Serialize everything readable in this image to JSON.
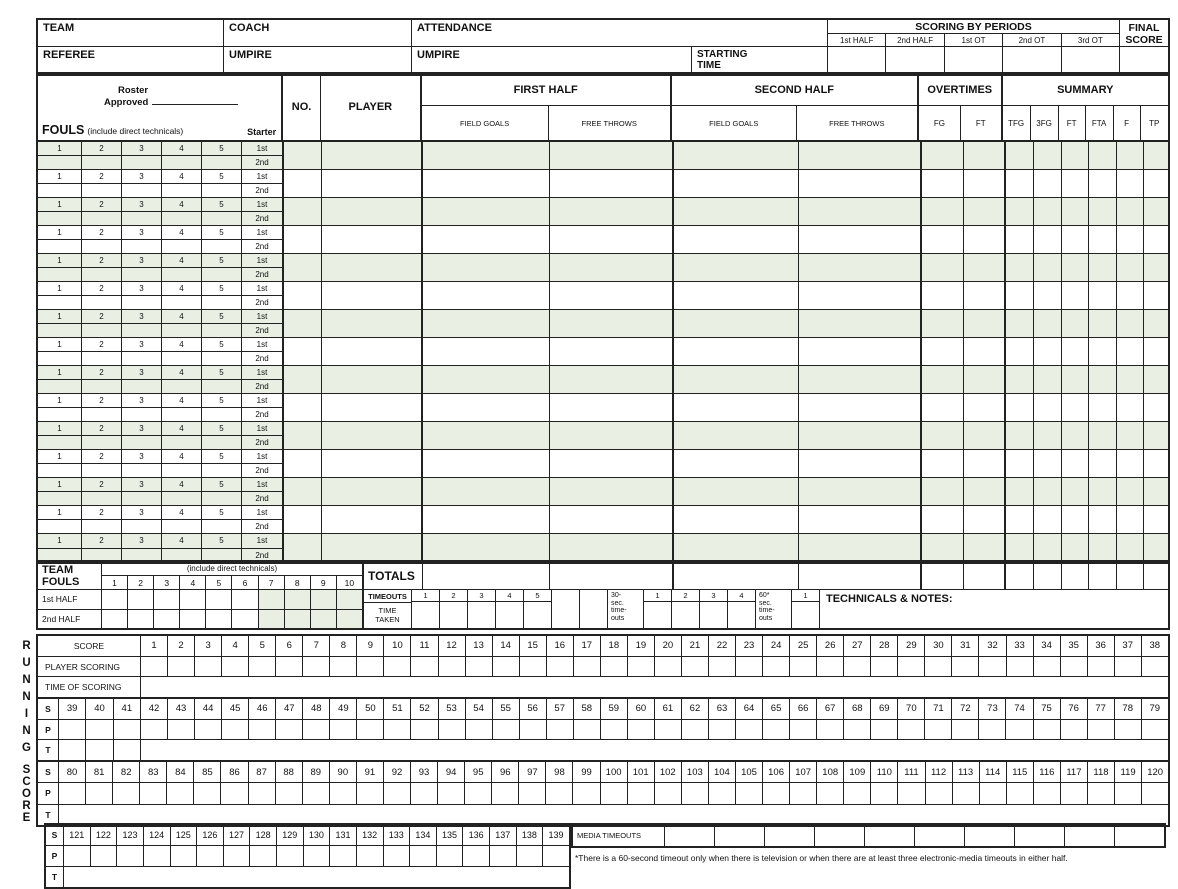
{
  "colors": {
    "green": "#e9efe3",
    "border": "#222222"
  },
  "top": {
    "team": "TEAM",
    "coach": "COACH",
    "attendance": "ATTENDANCE",
    "referee": "REFEREE",
    "umpire1": "UMPIRE",
    "umpire2": "UMPIRE",
    "starting_time": "STARTING\nTIME",
    "scoring_title": "SCORING BY PERIODS",
    "periods": [
      "1st HALF",
      "2nd HALF",
      "1st OT",
      "2nd OT",
      "3rd OT"
    ],
    "final_score": "FINAL\nSCORE"
  },
  "roster": {
    "roster_line": "Roster",
    "approved_line": "Approved",
    "fouls": "FOULS",
    "fouls_note": "(include direct technicals)",
    "starter": "Starter",
    "no": "NO.",
    "player": "PLAYER",
    "first_half": "FIRST HALF",
    "second_half": "SECOND HALF",
    "overtimes": "OVERTIMES",
    "summary": "SUMMARY",
    "field_goals": "FIELD GOALS",
    "free_throws": "FREE THROWS",
    "ot_cols": [
      "FG",
      "FT"
    ],
    "summary_cols": [
      "TFG",
      "3FG",
      "FT",
      "FTA",
      "F",
      "TP"
    ],
    "foul_numbers": [
      "1",
      "2",
      "3",
      "4",
      "5"
    ],
    "half_tags": [
      "1st",
      "2nd"
    ],
    "player_row_count": 15
  },
  "team_fouls": {
    "label": "TEAM\nFOULS",
    "note": "(include direct technicals)",
    "numbers": [
      "1",
      "2",
      "3",
      "4",
      "5",
      "6",
      "7",
      "8",
      "9",
      "10"
    ],
    "row_labels": [
      "1st HALF",
      "2nd HALF"
    ],
    "green_from_column": 7
  },
  "totals_label": "TOTALS",
  "timeouts": {
    "label": "TIMEOUTS",
    "time_taken": "TIME\nTAKEN",
    "regular_numbers": [
      "1",
      "2",
      "3",
      "4",
      "5"
    ],
    "spare_cells": 2,
    "thirty_label": [
      "30-",
      "sec.",
      "time-",
      "outs"
    ],
    "thirty_numbers": [
      "1",
      "2",
      "3",
      "4"
    ],
    "sixty_label": [
      "60*",
      "sec.",
      "time-",
      "outs"
    ],
    "sixty_numbers": [
      "1"
    ]
  },
  "technicals_label": "TECHNICALS & NOTES:",
  "running_score": {
    "vertical_word_1": "RUNNING",
    "vertical_word_2": "SCORE",
    "score_label": "SCORE",
    "player_scoring_label": "PLAYER SCORING",
    "time_of_scoring_label": "TIME OF SCORING",
    "spt": [
      "S",
      "P",
      "T"
    ],
    "bands": [
      {
        "start": 1,
        "end": 38
      },
      {
        "start": 39,
        "end": 79
      },
      {
        "start": 80,
        "end": 120
      },
      {
        "start": 121,
        "end": 139
      }
    ],
    "media_timeouts_label": "MEDIA TIMEOUTS",
    "media_cells": 10
  },
  "footnote": "*There is a 60-second timeout only when there is television or when there are at least three electronic-media timeouts in either half."
}
